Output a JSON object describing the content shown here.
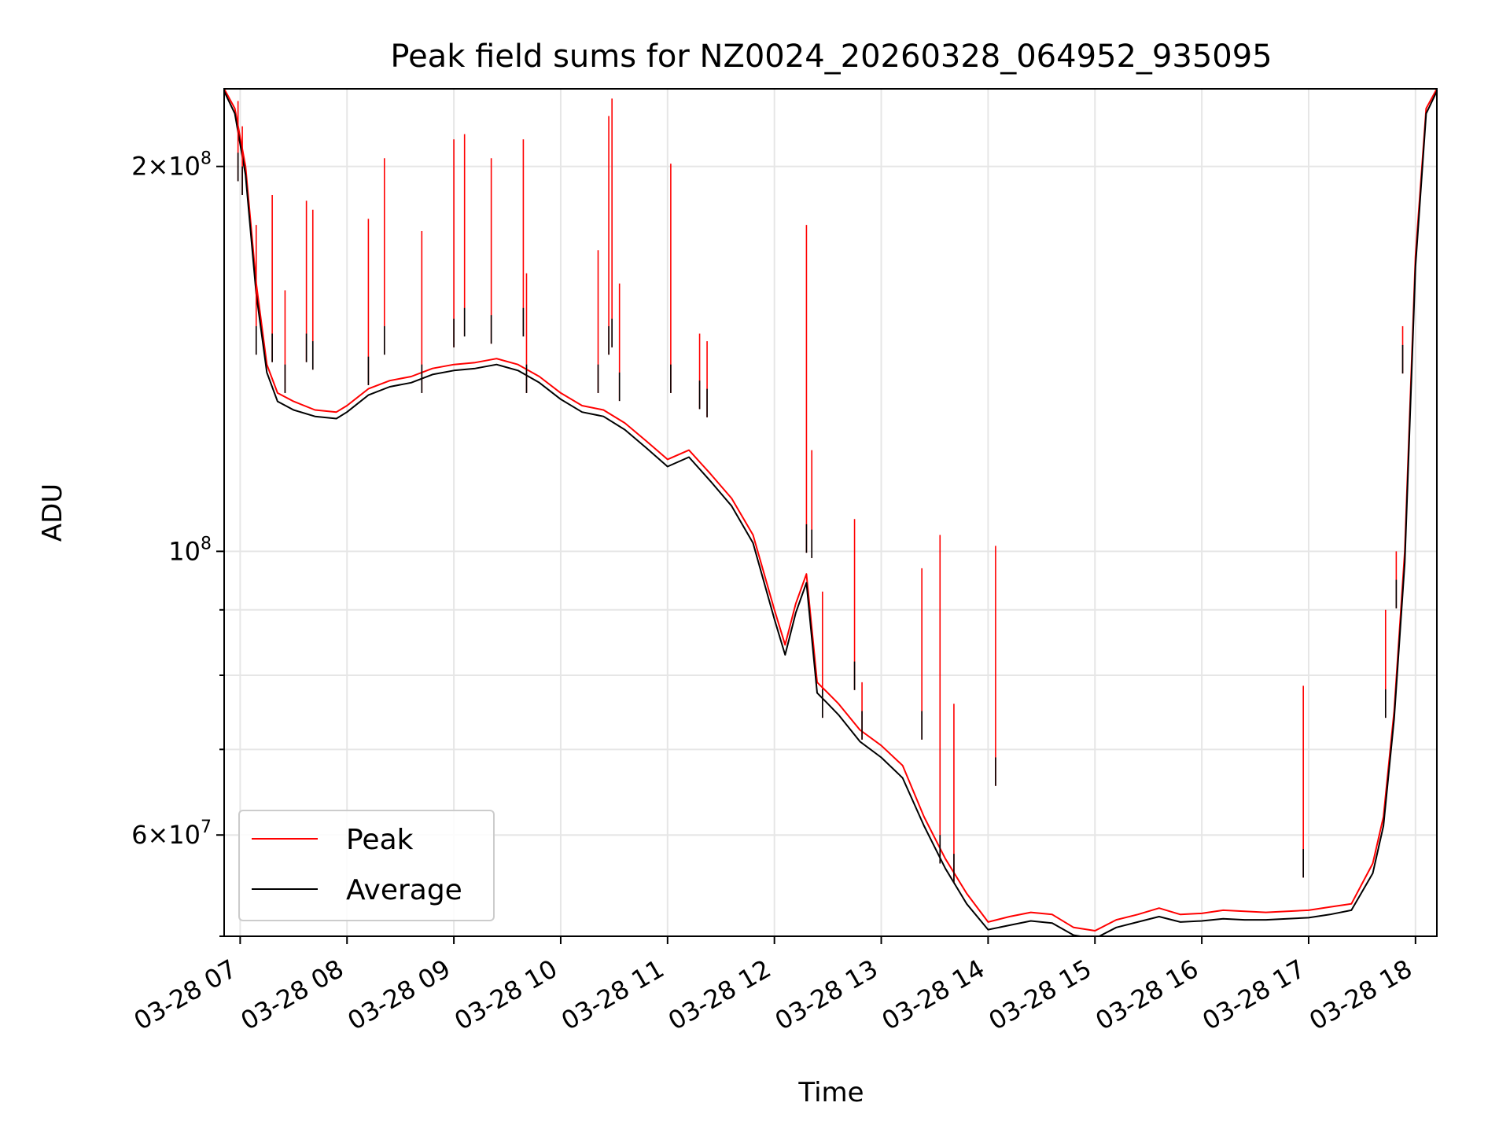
{
  "chart_data": {
    "type": "line",
    "title": "Peak field sums for NZ0024_20260328_064952_935095",
    "xlabel": "Time",
    "ylabel": "ADU",
    "yscale": "log",
    "grid": true,
    "xlim": [
      6.85,
      18.2
    ],
    "ylim": [
      50000000,
      230000000
    ],
    "x_ticks": [
      {
        "value": 7,
        "label": "03-28 07"
      },
      {
        "value": 8,
        "label": "03-28 08"
      },
      {
        "value": 9,
        "label": "03-28 09"
      },
      {
        "value": 10,
        "label": "03-28 10"
      },
      {
        "value": 11,
        "label": "03-28 11"
      },
      {
        "value": 12,
        "label": "03-28 12"
      },
      {
        "value": 13,
        "label": "03-28 13"
      },
      {
        "value": 14,
        "label": "03-28 14"
      },
      {
        "value": 15,
        "label": "03-28 15"
      },
      {
        "value": 16,
        "label": "03-28 16"
      },
      {
        "value": 17,
        "label": "03-28 17"
      },
      {
        "value": 18,
        "label": "03-28 18"
      }
    ],
    "y_major_ticks": [
      {
        "value": 60000000,
        "base": "6×10",
        "exp": "7"
      },
      {
        "value": 100000000,
        "base": "10",
        "exp": "8"
      },
      {
        "value": 200000000,
        "base": "2×10",
        "exp": "8"
      }
    ],
    "y_minor_ticks": [
      50000000,
      70000000,
      80000000,
      90000000
    ],
    "legend": {
      "position": "lower-left",
      "entries": [
        "Peak",
        "Average"
      ]
    },
    "series": [
      {
        "name": "Peak",
        "color": "#ff0000",
        "x": [
          6.85,
          6.95,
          7.05,
          7.15,
          7.25,
          7.35,
          7.5,
          7.7,
          7.9,
          8.0,
          8.2,
          8.4,
          8.6,
          8.8,
          9.0,
          9.2,
          9.4,
          9.6,
          9.8,
          10.0,
          10.2,
          10.4,
          10.6,
          10.8,
          11.0,
          11.2,
          11.4,
          11.6,
          11.8,
          12.0,
          12.1,
          12.2,
          12.3,
          12.4,
          12.5,
          12.6,
          12.8,
          13.0,
          13.2,
          13.4,
          13.6,
          13.8,
          14.0,
          14.2,
          14.4,
          14.6,
          14.8,
          15.0,
          15.2,
          15.4,
          15.6,
          15.8,
          16.0,
          16.2,
          16.4,
          16.6,
          16.8,
          17.0,
          17.2,
          17.4,
          17.6,
          17.7,
          17.8,
          17.9,
          18.0,
          18.1,
          18.2
        ],
        "y": [
          230000000,
          222000000,
          200000000,
          162000000,
          140000000,
          133000000,
          131000000,
          129000000,
          128500000,
          130000000,
          134000000,
          136000000,
          137000000,
          139000000,
          140000000,
          140500000,
          141500000,
          140000000,
          137000000,
          133000000,
          130000000,
          129000000,
          126000000,
          122000000,
          118000000,
          120000000,
          115000000,
          110000000,
          103000000,
          90000000,
          84500000,
          91000000,
          96000000,
          79000000,
          77500000,
          76000000,
          72500000,
          70500000,
          68000000,
          62000000,
          57500000,
          54000000,
          51300000,
          51800000,
          52200000,
          52000000,
          50800000,
          50500000,
          51500000,
          52000000,
          52600000,
          52000000,
          52100000,
          52400000,
          52300000,
          52200000,
          52300000,
          52400000,
          52700000,
          53000000,
          57000000,
          62000000,
          75000000,
          100000000,
          170000000,
          222000000,
          230000000
        ]
      },
      {
        "name": "Average",
        "color": "#000000",
        "x": [
          6.85,
          6.95,
          7.05,
          7.15,
          7.25,
          7.35,
          7.5,
          7.7,
          7.9,
          8.0,
          8.2,
          8.4,
          8.6,
          8.8,
          9.0,
          9.2,
          9.4,
          9.6,
          9.8,
          10.0,
          10.2,
          10.4,
          10.6,
          10.8,
          11.0,
          11.2,
          11.4,
          11.6,
          11.8,
          12.0,
          12.1,
          12.2,
          12.3,
          12.4,
          12.5,
          12.6,
          12.8,
          13.0,
          13.2,
          13.4,
          13.6,
          13.8,
          14.0,
          14.2,
          14.4,
          14.6,
          14.8,
          15.0,
          15.2,
          15.4,
          15.6,
          15.8,
          16.0,
          16.2,
          16.4,
          16.6,
          16.8,
          17.0,
          17.2,
          17.4,
          17.6,
          17.7,
          17.8,
          17.9,
          18.0,
          18.1,
          18.2
        ],
        "y": [
          229000000,
          220000000,
          197000000,
          159000000,
          138000000,
          131000000,
          129000000,
          127500000,
          127000000,
          128500000,
          132500000,
          134500000,
          135500000,
          137500000,
          138500000,
          139000000,
          140000000,
          138500000,
          135500000,
          131500000,
          128500000,
          127500000,
          124500000,
          120500000,
          116500000,
          118500000,
          113500000,
          108500000,
          101500000,
          88500000,
          83000000,
          89500000,
          94500000,
          77500000,
          76000000,
          74500000,
          71000000,
          69000000,
          66500000,
          61000000,
          56500000,
          53000000,
          50600000,
          51000000,
          51400000,
          51200000,
          50100000,
          49800000,
          50800000,
          51300000,
          51800000,
          51300000,
          51400000,
          51600000,
          51500000,
          51500000,
          51600000,
          51700000,
          52000000,
          52400000,
          56000000,
          61000000,
          74000000,
          98000000,
          167000000,
          220000000,
          229000000
        ]
      }
    ],
    "spikes": {
      "color": "#ff0000",
      "avg_color": "#000000",
      "x": [
        6.98,
        7.02,
        7.15,
        7.3,
        7.42,
        7.62,
        7.68,
        8.2,
        8.35,
        8.7,
        9.0,
        9.1,
        9.35,
        9.65,
        9.68,
        10.35,
        10.45,
        10.48,
        10.55,
        11.03,
        11.3,
        11.37,
        12.3,
        12.35,
        12.45,
        12.75,
        12.82,
        13.38,
        13.55,
        13.68,
        14.07,
        16.95,
        17.72,
        17.82,
        17.88
      ],
      "peak": [
        225000000,
        215000000,
        180000000,
        190000000,
        160000000,
        188000000,
        185000000,
        182000000,
        203000000,
        178000000,
        210000000,
        212000000,
        203000000,
        210000000,
        165000000,
        172000000,
        219000000,
        226000000,
        162000000,
        201000000,
        148000000,
        146000000,
        180000000,
        120000000,
        93000000,
        106000000,
        79000000,
        97000000,
        103000000,
        76000000,
        101000000,
        78500000,
        90000000,
        100000000,
        150000000
      ],
      "avg": [
        205000000,
        200000000,
        150000000,
        148000000,
        140000000,
        148000000,
        146000000,
        142000000,
        150000000,
        140000000,
        152000000,
        155000000,
        153000000,
        155000000,
        140000000,
        140000000,
        150000000,
        152000000,
        138000000,
        140000000,
        136000000,
        134000000,
        105000000,
        104000000,
        78000000,
        82000000,
        75000000,
        75000000,
        60000000,
        58000000,
        69000000,
        58500000,
        78000000,
        95000000,
        145000000
      ]
    }
  }
}
